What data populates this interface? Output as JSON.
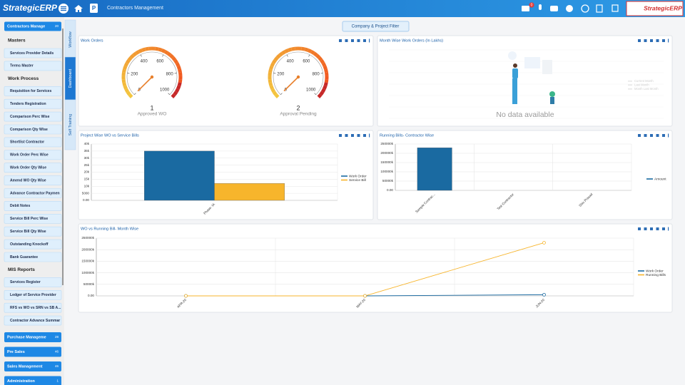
{
  "topbar": {
    "logo": "StrategicERP",
    "module_badge": "P",
    "title": "Contractors Management",
    "mail_count": 0,
    "brand": "StrategicERP"
  },
  "sidebar": {
    "top": {
      "label": "Contractors Manage",
      "count": 20
    },
    "sections": [
      {
        "heading": "Masters",
        "items": [
          "Services Provider Details",
          "Terms Master"
        ]
      },
      {
        "heading": "Work Process",
        "items": [
          "Requisition for Services",
          "Tenders Registration",
          "Comparison Perc Wise",
          "Comparison Qty Wise",
          "Shortlist Contractor",
          "Work Order Perc Wise",
          "Work Order Qty Wise",
          "Amend WO Qty Wise",
          "Advance Contractor Paymen",
          "Debit Notes",
          "Service Bill Perc Wise",
          "Service Bill Qty Wise",
          "Outstanding Knockoff",
          "Bank Guarantee"
        ]
      },
      {
        "heading": "MIS Reports",
        "items": [
          "Services Register",
          "Ledger of Service Provider",
          "RFS vs WO vs SRN vs SB A...",
          "Contractor Advance Summar"
        ]
      }
    ],
    "modules": [
      {
        "label": "Purchase Manageme",
        "count": 28
      },
      {
        "label": "Pre Sales",
        "count": 46
      },
      {
        "label": "Sales Management",
        "count": 46
      },
      {
        "label": "Administration",
        "count": 1
      }
    ]
  },
  "tabs": [
    "Workflow",
    "Dashboard",
    "Self Training"
  ],
  "filter": "Company & Project Filter",
  "panels": [
    {
      "title": "Work Orders",
      "type": "gauge",
      "lim": [
        0,
        1000
      ],
      "ticks": [
        0,
        200,
        400,
        600,
        800,
        1000
      ],
      "gauges": [
        {
          "value": 1,
          "label": "Approved WO"
        },
        {
          "value": 2,
          "label": "Approval Pending"
        }
      ]
    },
    {
      "title": "Month Wise Work Orders (In Lakhs)",
      "type": "empty",
      "message": "No data available",
      "legend": [
        "Current Month",
        "Last Month",
        "Month Last Month"
      ]
    },
    {
      "title": "Project Wise WO vs Service Bills",
      "type": "bar",
      "grid": true,
      "categories": [
        "Phase- IA"
      ],
      "series": [
        {
          "name": "Work Order",
          "color": "#1a6aa1",
          "values": [
            35000
          ]
        },
        {
          "name": "Service Bill",
          "color": "#f7b52c",
          "values": [
            12000
          ]
        }
      ],
      "ylim": [
        0,
        40000
      ],
      "yticks": [
        {
          "value": 0,
          "label": "0.00"
        },
        5000,
        {
          "value": 10000,
          "label": "10k"
        },
        {
          "value": 15000,
          "label": "15k"
        },
        {
          "value": 20000,
          "label": "20k"
        },
        {
          "value": 25000,
          "label": "25k"
        },
        {
          "value": 30000,
          "label": "30k"
        },
        {
          "value": 35000,
          "label": "35k"
        },
        {
          "value": 40000,
          "label": "40k"
        }
      ]
    },
    {
      "title": "Running Bills- Contractor Wise",
      "type": "bar",
      "grid": true,
      "categories": [
        "Sample Contrac...",
        "Test Contractor",
        "Shiv Prasad"
      ],
      "series": [
        {
          "name": "Amount",
          "color": "#1a6aa1",
          "values": [
            230000000,
            0,
            0
          ]
        }
      ],
      "ylim": [
        0,
        250000000
      ],
      "yticks": [
        {
          "value": 0,
          "label": "0.00"
        },
        {
          "value": 50000000,
          "label": "50000k"
        },
        {
          "value": 100000000,
          "label": "100000k"
        },
        {
          "value": 150000000,
          "label": "150000k"
        },
        {
          "value": 200000000,
          "label": "200000k"
        },
        {
          "value": 250000000,
          "label": "250000k"
        }
      ]
    },
    {
      "title": "WO vs Running Bill- Month Wise",
      "type": "line",
      "grid": true,
      "categories": [
        "APR-20",
        "MAY-20",
        "JUN-20"
      ],
      "series": [
        {
          "name": "Work Order",
          "color": "#1a6aa1",
          "values": [
            0,
            0,
            5000000
          ]
        },
        {
          "name": "Running Bills",
          "color": "#f7b52c",
          "values": [
            0,
            0,
            230000000
          ]
        }
      ],
      "ylim": [
        0,
        250000000
      ],
      "yticks": [
        {
          "value": 0,
          "label": "0.00"
        },
        {
          "value": 50000000,
          "label": "50000k"
        },
        {
          "value": 100000000,
          "label": "100000k"
        },
        {
          "value": 150000000,
          "label": "150000k"
        },
        {
          "value": 200000000,
          "label": "200000k"
        },
        {
          "value": 250000000,
          "label": "250000k"
        }
      ]
    }
  ]
}
